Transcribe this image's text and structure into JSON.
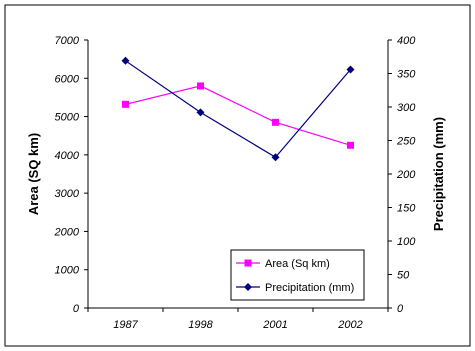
{
  "chart_data": {
    "type": "line",
    "categories": [
      "1987",
      "1998",
      "2001",
      "2002"
    ],
    "series": [
      {
        "name": "Area (Sq km)",
        "axis": "left",
        "color": "#ff00ff",
        "marker": "square",
        "values": [
          5320,
          5800,
          4850,
          4250
        ]
      },
      {
        "name": "Precipitation (mm)",
        "axis": "right",
        "color": "#000080",
        "marker": "diamond",
        "values": [
          369,
          292,
          225,
          356
        ]
      }
    ],
    "y_left": {
      "label": "Area (SQ km)",
      "lim": [
        0,
        7000
      ],
      "ticks": [
        "0",
        "1000",
        "2000",
        "3000",
        "4000",
        "5000",
        "6000",
        "7000"
      ]
    },
    "y_right": {
      "label": "Precipitation (mm)",
      "lim": [
        0,
        400
      ],
      "ticks": [
        "0",
        "50",
        "100",
        "150",
        "200",
        "250",
        "300",
        "350",
        "400"
      ]
    },
    "grid": false,
    "legend_position": "bottom-right"
  }
}
